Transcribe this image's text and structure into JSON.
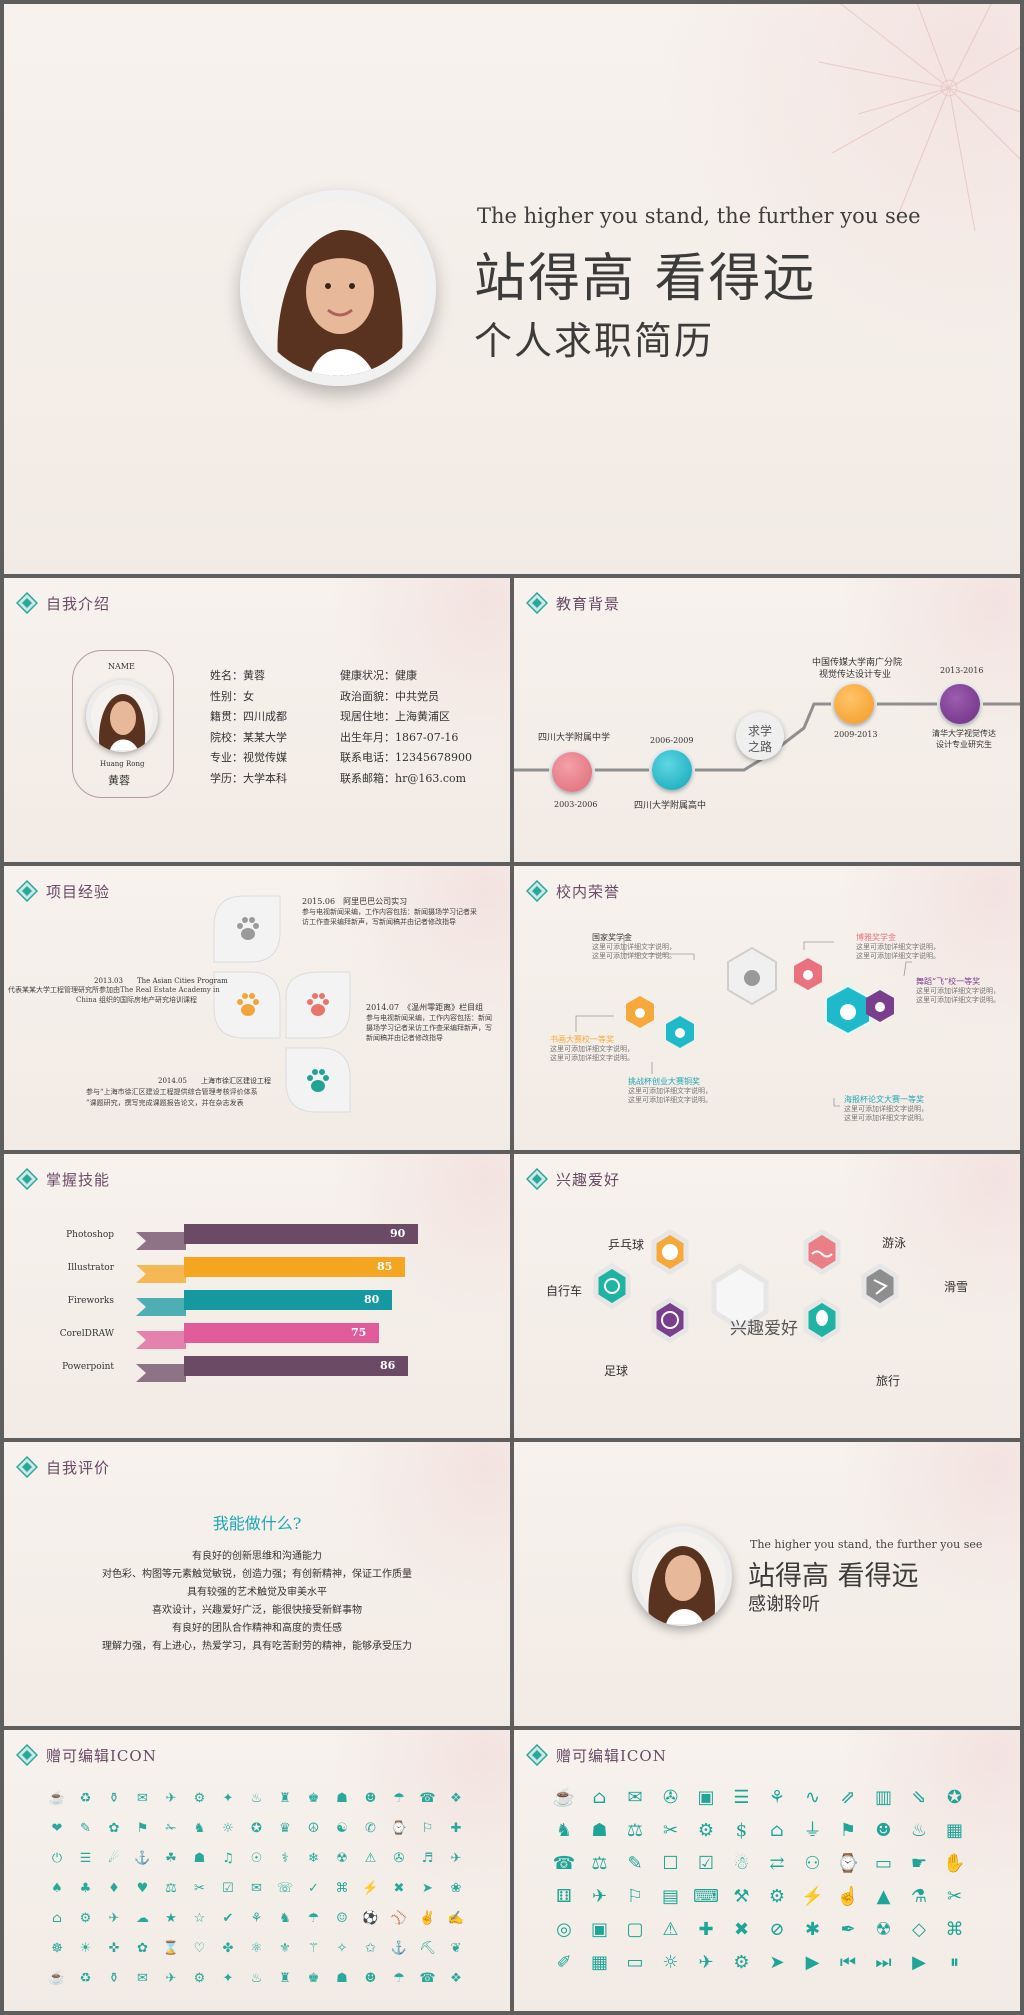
{
  "hero": {
    "eng": "The higher you stand, the further you see",
    "cn1": "站得高 看得远",
    "cn2": "个人求职简历"
  },
  "intro": {
    "title": "自我介绍",
    "name_label": "NAME",
    "pinyin": "Huang Rong",
    "name": "黄蓉",
    "left": [
      "姓名：黄蓉",
      "性别：女",
      "籍贯：四川成都",
      "院校：某某大学",
      "专业：视觉传媒",
      "学历：大学本科"
    ],
    "right": [
      "健康状况：健康",
      "政治面貌：中共党员",
      "现居住地：上海黄浦区",
      "出生年月：1867-07-16",
      "联系电话：12345678900",
      "联系邮箱：hr@163.com"
    ]
  },
  "edu": {
    "title": "教育背景",
    "center": [
      "求学",
      "之路"
    ],
    "items": [
      {
        "label": "四川大学附属中学",
        "date": "2003-2006",
        "color": "#e8737f"
      },
      {
        "label": "四川大学附属高中",
        "date": "2006-2009",
        "color": "#19b3c3"
      },
      {
        "label": "中国传媒大学南广分院 视觉传达设计专业",
        "date": "2009-2013",
        "color": "#f6a93b"
      },
      {
        "label": "清华大学视觉传达 设计专业研究生",
        "date": "2013-2016",
        "color": "#7a3f8c"
      }
    ],
    "label3_line1": "中国传媒大学南广分院",
    "label3_line2": "视觉传达设计专业",
    "label4_line1": "清华大学视觉传达",
    "label4_line2": "设计专业研究生"
  },
  "project": {
    "title": "项目经验",
    "p1_title": "2015.06　阿里巴巴公司实习",
    "p1_l1": "参与电视新闻采编，工作内容包括：新闻摄场学习记者采",
    "p1_l2": "访工作查采编拜新声，写新闻稿并由记者修改指导",
    "p2_title": "2013.03　　The Asian Cities Program",
    "p2_l1": "代表某某大学工程管理研究所参加由The Real Estate Academy in",
    "p2_l2": "China 组织的国际房地产研究培训课程",
    "p3_title": "2014.07　《温州零距离》栏目组",
    "p3_l1": "参与电视新闻采编，工作内容包括：新闻",
    "p3_l2": "摄场学习记者采访工作查采编拜新声，写",
    "p3_l3": "新闻稿并由记者修改指导",
    "p4_title": "2014.05　　上海市徐汇区建设工程",
    "p4_l1": "参与“上海市徐汇区建设工程提供综合管理考核评价体系",
    "p4_l2": "”课题研究，撰写完成课题报告论文，并在杂志发表"
  },
  "honor": {
    "title": "校内荣誉",
    "a_title": "国家奖学金",
    "b_title": "博雅奖学金",
    "c_title": "舞蹈“飞”校一等奖",
    "d_title": "书画大赛校一等奖",
    "e_title": "挑战杯创业大赛铜奖",
    "f_title": "海报杯论文大赛一等奖",
    "desc1": "这里可添加详细文字说明，",
    "desc2": "这里可添加详细文字说明。"
  },
  "skills": {
    "title": "掌握技能",
    "items": [
      {
        "name": "Photoshop",
        "value": 90,
        "color": "#6b4a66"
      },
      {
        "name": "Illustrator",
        "value": 85,
        "color": "#f4a621"
      },
      {
        "name": "Fireworks",
        "value": 80,
        "color": "#1598a0"
      },
      {
        "name": "CorelDRAW",
        "value": 75,
        "color": "#e05c9a"
      },
      {
        "name": "Powerpoint",
        "value": 86,
        "color": "#6b4a66"
      }
    ]
  },
  "hobby": {
    "title": "兴趣爱好",
    "center": "兴趣爱好",
    "items": [
      "乒乓球",
      "自行车",
      "足球",
      "游泳",
      "滑雪",
      "旅行"
    ]
  },
  "eval": {
    "title": "自我评价",
    "heading": "我能做什么?",
    "lines": [
      "有良好的创新思维和沟通能力",
      "对色彩、构图等元素触觉敏锐，创造力强；有创新精神，保证工作质量",
      "具有较强的艺术触觉及审美水平",
      "喜欢设计，兴趣爱好广泛，能很快接受新鲜事物",
      "有良好的团队合作精神和高度的责任感",
      "理解力强，有上进心，热爱学习，具有吃苦耐劳的精神，能够承受压力"
    ]
  },
  "thanks": {
    "eng": "The higher you stand, the further you see",
    "cn1": "站得高 看得远",
    "cn2": "感谢聆听"
  },
  "icons1": {
    "title": "赠可编辑ICON"
  },
  "icons2": {
    "title": "赠可编辑ICON"
  },
  "colors": {
    "teal": "#2aa89b",
    "purple": "#6a4a67"
  }
}
